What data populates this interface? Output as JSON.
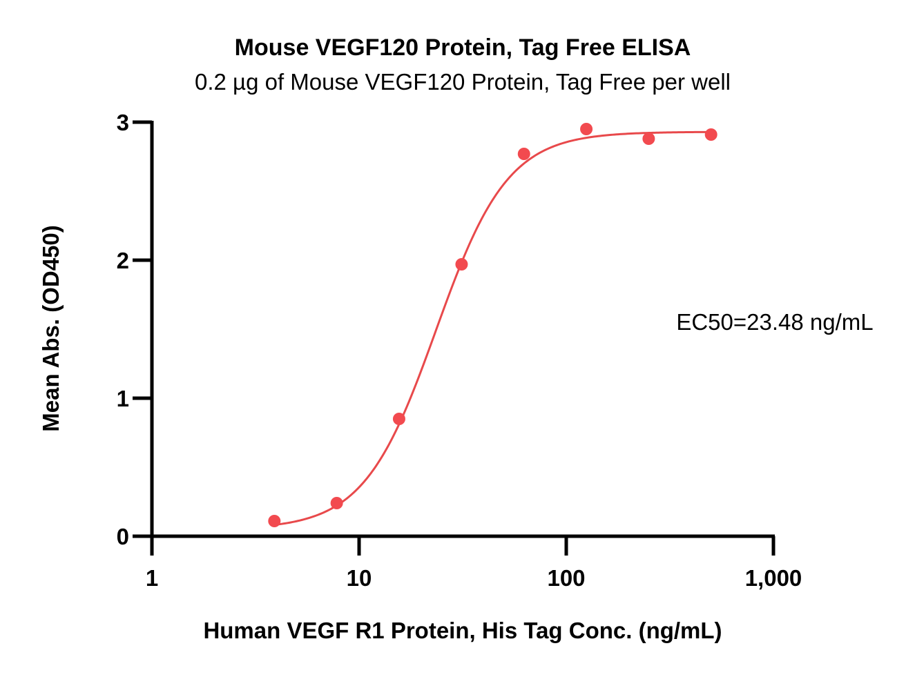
{
  "chart_data": {
    "type": "scatter",
    "title": "Mouse VEGF120 Protein, Tag Free ELISA",
    "subtitle": "0.2 µg of Mouse VEGF120 Protein, Tag Free per well",
    "xlabel": "Human VEGF R1 Protein, His Tag Conc. (ng/mL)",
    "ylabel": "Mean Abs. (OD450)",
    "x_scale": "log",
    "xlim": [
      1,
      1000
    ],
    "ylim": [
      0,
      3
    ],
    "x_ticks": [
      1,
      10,
      100,
      1000
    ],
    "x_tick_labels": [
      "1",
      "10",
      "100",
      "1,000"
    ],
    "y_ticks": [
      0,
      1,
      2,
      3
    ],
    "y_tick_labels": [
      "0",
      "1",
      "2",
      "3"
    ],
    "grid": false,
    "series": [
      {
        "color": "#f24a4f",
        "x": [
          3.9,
          7.8,
          15.6,
          31.25,
          62.5,
          125,
          250,
          500
        ],
        "y": [
          0.11,
          0.24,
          0.85,
          1.97,
          2.77,
          2.95,
          2.88,
          2.91
        ]
      }
    ],
    "fit": {
      "model": "4PL",
      "bottom": 0.05,
      "top": 2.93,
      "ec50": 23.48,
      "hill": 2.5,
      "color": "#e8494b"
    },
    "annotation": "EC50=23.48 ng/mL"
  }
}
